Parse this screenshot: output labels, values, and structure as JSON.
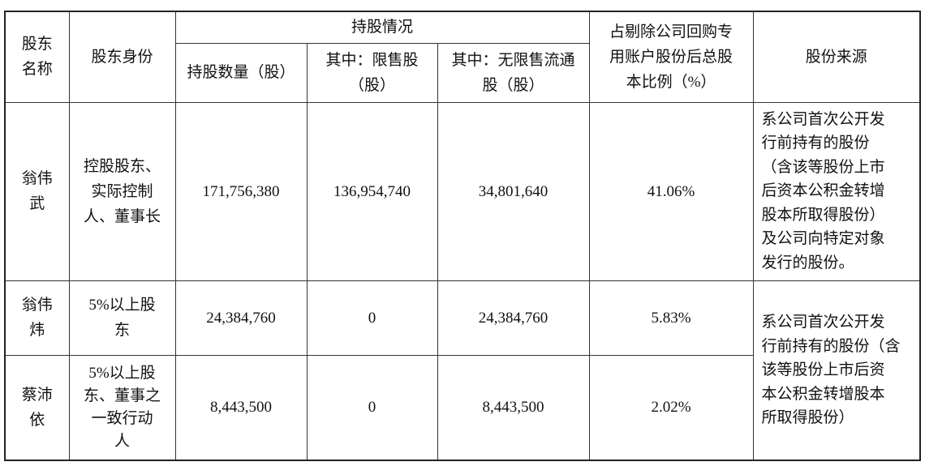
{
  "headers": {
    "name": "股东\n名称",
    "identity": "股东身份",
    "holding_group": "持股情况",
    "total": "持股数量（股）",
    "restricted": "其中：限售股\n（股）",
    "unrestricted": "其中：无限售流通\n股（股）",
    "ratio": "占剔除公司回购专\n用账户股份后总股\n本比例（%）",
    "source": "股份来源"
  },
  "rows": [
    {
      "name": "翁伟\n武",
      "identity": "控股股东、\n实际控制\n人、董事长",
      "total": "171,756,380",
      "restricted": "136,954,740",
      "unrestricted": "34,801,640",
      "ratio": "41.06%",
      "source": "系公司首次公开发\n行前持有的股份\n（含该等股份上市\n后资本公积金转增\n股本所取得股份）\n及公司向特定对象\n发行的股份。"
    },
    {
      "name": "翁伟\n炜",
      "identity": "5%以上股\n东",
      "total": "24,384,760",
      "restricted": "0",
      "unrestricted": "24,384,760",
      "ratio": "5.83%",
      "source": "系公司首次公开发\n行前持有的股份（含\n该等股份上市后资\n本公积金转增股本\n所取得股份）"
    },
    {
      "name": "蔡沛\n依",
      "identity": "5%以上股\n东、董事之\n一致行动\n人",
      "total": "8,443,500",
      "restricted": "0",
      "unrestricted": "8,443,500",
      "ratio": "2.02%"
    }
  ]
}
